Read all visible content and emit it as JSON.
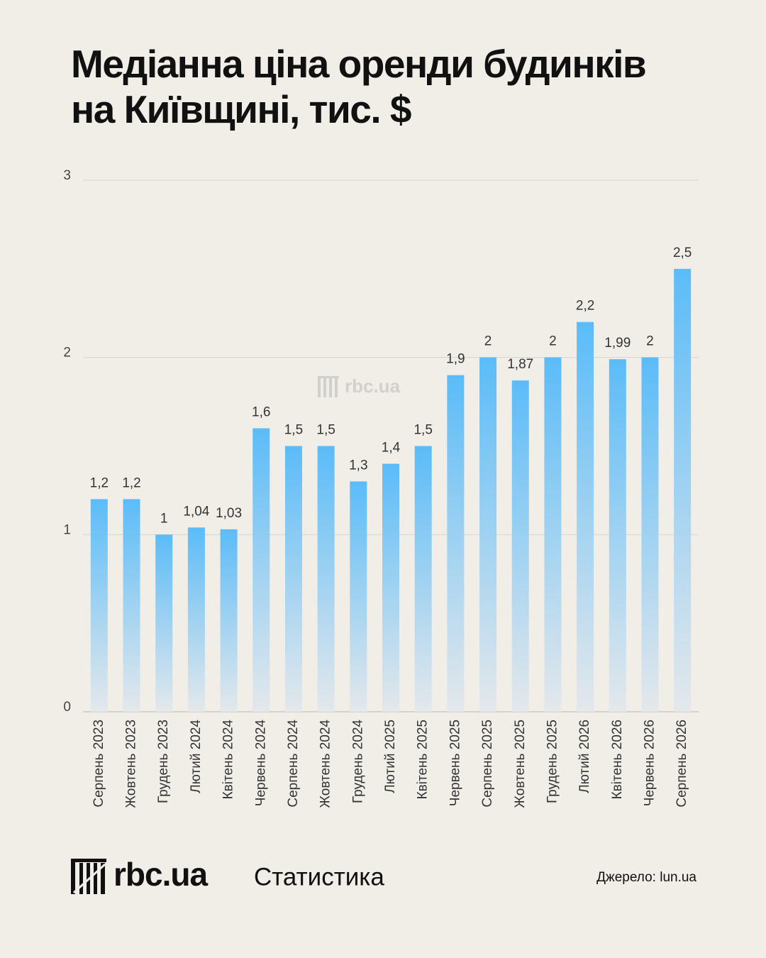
{
  "chart_data": {
    "type": "bar",
    "title": "Медіанна ціна оренди будинків на Київщині, тис. $",
    "categories": [
      "Серпень 2023",
      "Жовтень 2023",
      "Грудень 2023",
      "Лютий 2024",
      "Квітень 2024",
      "Червень 2024",
      "Серпень 2024",
      "Жовтень 2024",
      "Грудень 2024",
      "Лютий 2025",
      "Квітень 2025",
      "Червень 2025",
      "Серпень 2025",
      "Жовтень 2025",
      "Грудень 2025",
      "Лютий 2026",
      "Квітень 2026",
      "Червень 2026",
      "Серпень 2026"
    ],
    "values": [
      1.2,
      1.2,
      1,
      1.04,
      1.03,
      1.6,
      1.5,
      1.5,
      1.3,
      1.4,
      1.5,
      1.9,
      2,
      1.87,
      2,
      2.2,
      1.99,
      2,
      2.5
    ],
    "value_labels": [
      "1,2",
      "1,2",
      "1",
      "1,04",
      "1,03",
      "1,6",
      "1,5",
      "1,5",
      "1,3",
      "1,4",
      "1,5",
      "1,9",
      "2",
      "1,87",
      "2",
      "2,2",
      "1,99",
      "2",
      "2,5"
    ],
    "color": "#5bbcf8",
    "ylim": [
      0,
      3
    ],
    "yticks": [
      0,
      1,
      2,
      3
    ],
    "grid": true
  },
  "watermark": "rbc.ua",
  "footer": {
    "logo": "rbc.ua",
    "section": "Статистика",
    "source": "Джерело: lun.ua"
  }
}
